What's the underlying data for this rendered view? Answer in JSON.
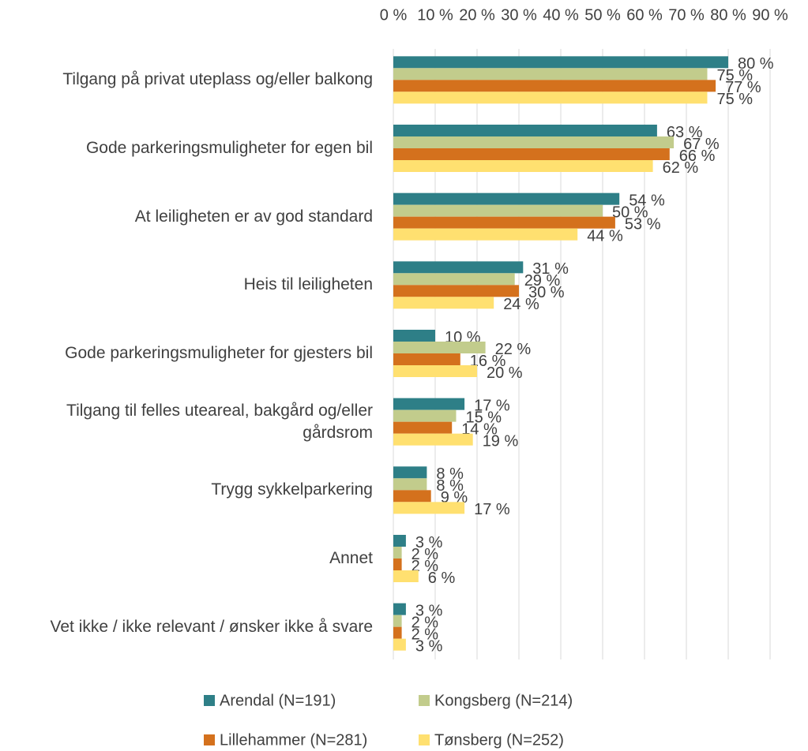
{
  "chart_data": {
    "type": "hbar",
    "categories": [
      "Tilgang på privat uteplass og/eller balkong",
      "Gode parkeringsmuligheter for egen bil",
      "At leiligheten er av god standard",
      "Heis til leiligheten",
      "Gode parkeringsmuligheter for gjesters bil",
      "Tilgang til felles uteareal, bakgård og/eller gårdsrom",
      "Trygg sykkelparkering",
      "Annet",
      "Vet ikke / ikke relevant / ønsker ikke å svare"
    ],
    "series": [
      {
        "name": "Arendal (N=191)",
        "color": "#2e7f87",
        "values": [
          80,
          63,
          54,
          31,
          10,
          17,
          8,
          3,
          3
        ],
        "value_labels": [
          "80 %",
          "63 %",
          "54 %",
          "31 %",
          "10 %",
          "17 %",
          "8 %",
          "3 %",
          "3 %"
        ]
      },
      {
        "name": "Kongsberg (N=214)",
        "color": "#c2cc8c",
        "values": [
          75,
          67,
          50,
          29,
          22,
          15,
          8,
          2,
          2
        ],
        "value_labels": [
          "75 %",
          "67 %",
          "50 %",
          "29 %",
          "22 %",
          "15 %",
          "8 %",
          "2 %",
          "2 %"
        ]
      },
      {
        "name": "Lillehammer (N=281)",
        "color": "#d4711d",
        "values": [
          77,
          66,
          53,
          30,
          16,
          14,
          9,
          2,
          2
        ],
        "value_labels": [
          "77 %",
          "66 %",
          "53 %",
          "30 %",
          "16 %",
          "14 %",
          "9 %",
          "2 %",
          "2 %"
        ]
      },
      {
        "name": "Tønsberg (N=252)",
        "color": "#ffe070",
        "values": [
          75,
          62,
          44,
          24,
          20,
          19,
          17,
          6,
          3
        ],
        "value_labels": [
          "75 %",
          "62 %",
          "44 %",
          "24 %",
          "20 %",
          "19 %",
          "17 %",
          "6 %",
          "3 %"
        ]
      }
    ],
    "xlim": [
      0,
      90
    ],
    "xticks": [
      {
        "value": 0,
        "label": "0 %"
      },
      {
        "value": 10,
        "label": "10 %"
      },
      {
        "value": 20,
        "label": "20 %"
      },
      {
        "value": 30,
        "label": "30 %"
      },
      {
        "value": 40,
        "label": "40 %"
      },
      {
        "value": 50,
        "label": "50 %"
      },
      {
        "value": 60,
        "label": "60 %"
      },
      {
        "value": 70,
        "label": "70 %"
      },
      {
        "value": 80,
        "label": "80 %"
      },
      {
        "value": 90,
        "label": "90 %"
      }
    ],
    "grid": true
  }
}
